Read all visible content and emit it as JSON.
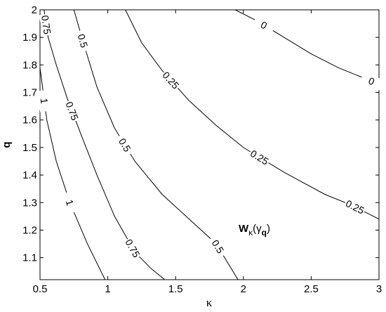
{
  "chart_data": {
    "type": "contour",
    "xlim": [
      0.5,
      3
    ],
    "ylim": [
      1.02,
      2
    ],
    "xticks": [
      0.5,
      1,
      1.5,
      2,
      2.5,
      3
    ],
    "yticks": [
      1.1,
      1.2,
      1.3,
      1.4,
      1.5,
      1.6,
      1.7,
      1.8,
      1.9,
      2
    ],
    "xlabel": "κ",
    "ylabel": "q",
    "annotation": [
      "W",
      "κ",
      "(γ",
      "q",
      ")"
    ],
    "color": "#000000",
    "series": [
      {
        "level": 1,
        "x": [
          0.5,
          0.55,
          0.62,
          0.72,
          0.85,
          0.98
        ],
        "y": [
          1.79,
          1.6,
          1.45,
          1.3,
          1.15,
          1.02
        ]
      },
      {
        "level": 0.75,
        "x": [
          0.53,
          0.56,
          0.62,
          0.7,
          0.8,
          0.92,
          1.05,
          1.2,
          1.32,
          1.42
        ],
        "y": [
          2,
          1.9,
          1.8,
          1.68,
          1.55,
          1.4,
          1.25,
          1.12,
          1.06,
          1.02
        ]
      },
      {
        "level": 0.5,
        "x": [
          0.75,
          0.82,
          0.92,
          1.05,
          1.2,
          1.4,
          1.6,
          1.8,
          1.96
        ],
        "y": [
          2,
          1.88,
          1.72,
          1.57,
          1.45,
          1.33,
          1.24,
          1.15,
          1.02
        ]
      },
      {
        "level": 0.25,
        "x": [
          1.13,
          1.25,
          1.4,
          1.6,
          1.8,
          2.0,
          2.3,
          2.6,
          2.8,
          3
        ],
        "y": [
          2,
          1.88,
          1.78,
          1.67,
          1.58,
          1.5,
          1.41,
          1.33,
          1.29,
          1.24
        ]
      },
      {
        "level": 0,
        "x": [
          1.94,
          2.1,
          2.3,
          2.5,
          2.7,
          2.9,
          3
        ],
        "y": [
          2,
          1.96,
          1.9,
          1.84,
          1.79,
          1.75,
          1.73
        ]
      }
    ]
  }
}
